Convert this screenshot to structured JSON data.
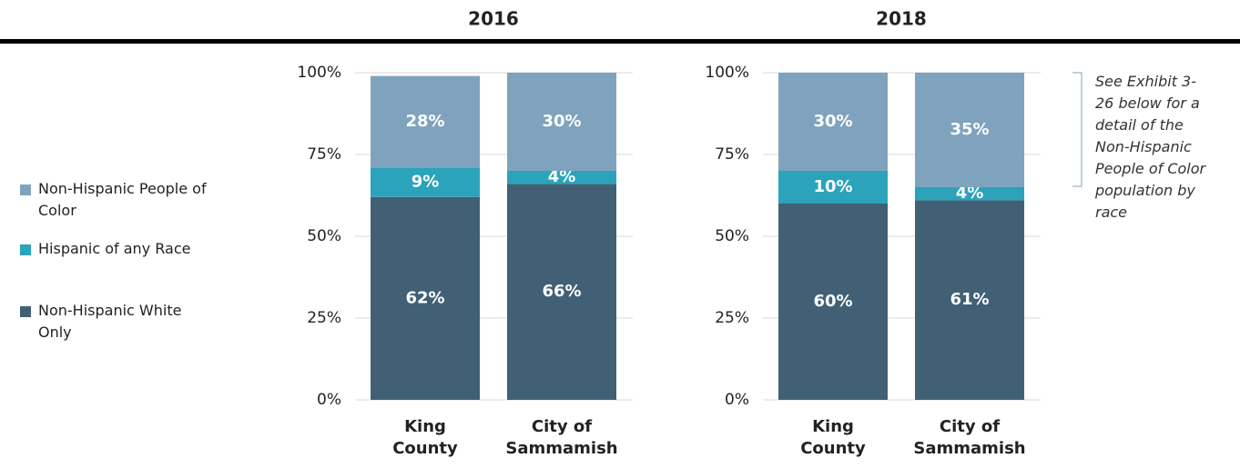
{
  "legend": {
    "items": [
      {
        "name": "Non-Hispanic White Only",
        "color": "#416075"
      },
      {
        "name": "Hispanic of any Race",
        "color": "#2ba3bb"
      },
      {
        "name": "Non-Hispanic People of Color",
        "color": "#7fa3bd"
      }
    ]
  },
  "annotation": "See Exhibit 3-26 below for a detail of the Non-Hispanic People of Color population by race",
  "chart_data": [
    {
      "type": "stacked_bar",
      "title": "2016",
      "categories": [
        "King County",
        "City of Sammamish"
      ],
      "series": [
        {
          "values": [
            62,
            66
          ],
          "value_labels": [
            "62%",
            "66%"
          ]
        },
        {
          "values": [
            9,
            4
          ],
          "value_labels": [
            "9%",
            "4%"
          ]
        },
        {
          "values": [
            28,
            30
          ],
          "value_labels": [
            "28%",
            "30%"
          ]
        }
      ],
      "ylim": [
        0,
        100
      ],
      "yticks": [
        {
          "value": 0,
          "label": "0%"
        },
        {
          "value": 25,
          "label": "25%"
        },
        {
          "value": 50,
          "label": "50%"
        },
        {
          "value": 75,
          "label": "75%"
        },
        {
          "value": 100,
          "label": "100%"
        }
      ],
      "grid": true
    },
    {
      "type": "stacked_bar",
      "title": "2018",
      "categories": [
        "King County",
        "City of Sammamish"
      ],
      "series": [
        {
          "values": [
            60,
            61
          ],
          "value_labels": [
            "60%",
            "61%"
          ]
        },
        {
          "values": [
            10,
            4
          ],
          "value_labels": [
            "10%",
            "4%"
          ]
        },
        {
          "values": [
            30,
            35
          ],
          "value_labels": [
            "30%",
            "35%"
          ]
        }
      ],
      "ylim": [
        0,
        100
      ],
      "yticks": [
        {
          "value": 0,
          "label": "0%"
        },
        {
          "value": 25,
          "label": "25%"
        },
        {
          "value": 50,
          "label": "50%"
        },
        {
          "value": 75,
          "label": "75%"
        },
        {
          "value": 100,
          "label": "100%"
        }
      ],
      "grid": true
    }
  ]
}
